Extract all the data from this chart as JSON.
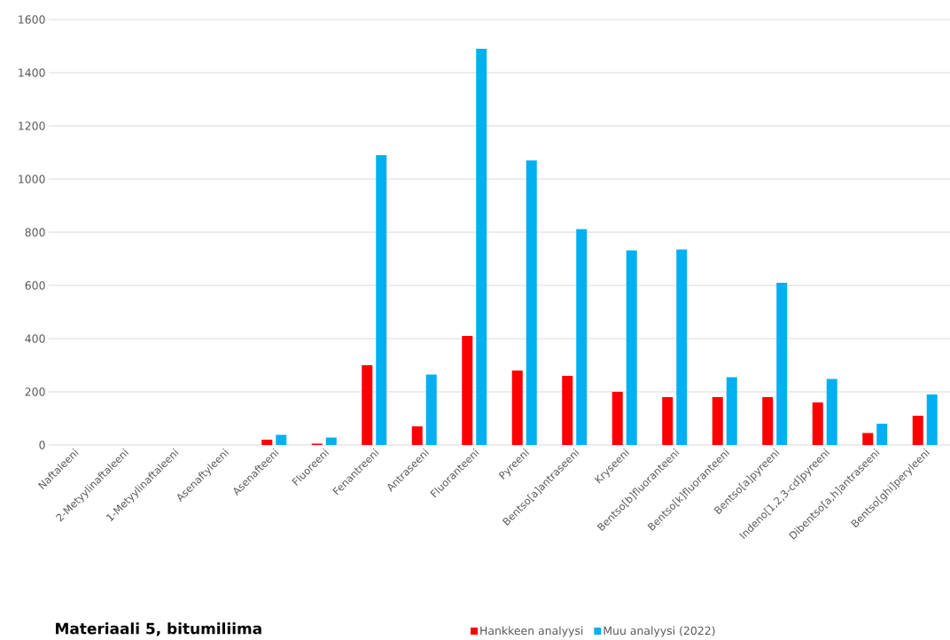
{
  "chart_data": {
    "type": "bar",
    "title": "**Materiaali 5, bitumiliima**",
    "categories": [
      "Naftaleeni",
      "2-Metyylinaftaleeni",
      "1-Metyylinaftaleeni",
      "Asenaftyleeni",
      "Asenafteeni",
      "Fluoreeni",
      "Fenantreeni",
      "Antraseeni",
      "Fluoranteeni",
      "Pyreeni",
      "Bentso[a]antraseeni",
      "Kryseeni",
      "Bentso[b]fluoranteeni",
      "Bentso[k]fluoranteeni",
      "Bentso[a]pyreeni",
      "Indeno[1,2,3-cd]pyreeni",
      "Dibentso[a,h]antraseeni",
      "Bentso[ghi]peryleeni"
    ],
    "series": [
      {
        "name": "Hankkeen analyysi",
        "color": "#ff0000",
        "values": [
          null,
          null,
          null,
          null,
          20,
          5,
          300,
          70,
          410,
          280,
          260,
          200,
          180,
          180,
          180,
          160,
          45,
          110
        ]
      },
      {
        "name": "Muu analyysi (2022)",
        "color": "#00b0f0",
        "values": [
          null,
          null,
          null,
          null,
          38,
          28,
          1090,
          265,
          1490,
          1070,
          812,
          732,
          735,
          255,
          610,
          248,
          80,
          190
        ]
      }
    ],
    "ylim": [
      0,
      1600
    ],
    "yticks": [
      0,
      200,
      400,
      600,
      800,
      1000,
      1200,
      1400,
      1600
    ],
    "grid": "y",
    "legend": "bottom"
  }
}
